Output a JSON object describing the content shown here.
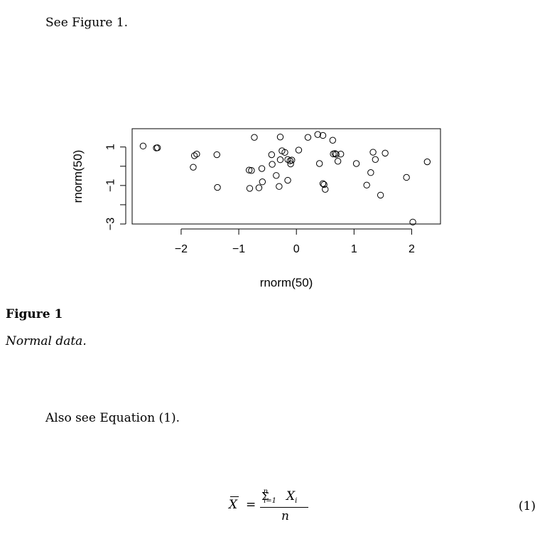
{
  "text": {
    "see_figure": "See Figure 1.",
    "figure_title": "Figure 1",
    "figure_caption": "Normal data.",
    "also_see": "Also see Equation (1).",
    "equation_number": "(1)"
  },
  "equation": {
    "lhs": "X",
    "equals": "=",
    "sum": "Σ",
    "sum_upper": "n",
    "sum_lower": "i=1",
    "term": "X",
    "term_sub": "i",
    "denominator": "n"
  },
  "chart_data": {
    "type": "scatter",
    "xlabel": "rnorm(50)",
    "ylabel": "rnorm(50)",
    "xlim": [
      -2.85,
      2.5
    ],
    "ylim": [
      -3.0,
      1.95
    ],
    "xticks": [
      -2,
      -1,
      0,
      1,
      2
    ],
    "xtick_labels": [
      "−2",
      "−1",
      "0",
      "1",
      "2"
    ],
    "yticks": [
      1,
      -1,
      -3
    ],
    "ytick_labels": [
      "1",
      "−1",
      "−3"
    ],
    "grid": false,
    "legend": "none",
    "points": [
      [
        -2.66,
        1.05
      ],
      [
        -2.43,
        0.95
      ],
      [
        -2.41,
        0.96
      ],
      [
        -1.77,
        0.55
      ],
      [
        -1.73,
        0.63
      ],
      [
        -1.79,
        -0.05
      ],
      [
        -1.38,
        0.6
      ],
      [
        -1.37,
        -1.1
      ],
      [
        -0.73,
        1.5
      ],
      [
        -0.82,
        -0.2
      ],
      [
        -0.78,
        -0.22
      ],
      [
        -0.81,
        -1.15
      ],
      [
        -0.65,
        -1.12
      ],
      [
        -0.59,
        -0.81
      ],
      [
        -0.6,
        -0.12
      ],
      [
        -0.43,
        0.6
      ],
      [
        -0.42,
        0.1
      ],
      [
        -0.35,
        -0.48
      ],
      [
        -0.28,
        1.52
      ],
      [
        -0.25,
        0.8
      ],
      [
        -0.2,
        0.72
      ],
      [
        -0.3,
        -1.05
      ],
      [
        -0.28,
        0.34
      ],
      [
        -0.15,
        0.35
      ],
      [
        -0.11,
        0.28
      ],
      [
        -0.1,
        0.12
      ],
      [
        -0.08,
        0.32
      ],
      [
        -0.15,
        -0.73
      ],
      [
        0.04,
        0.84
      ],
      [
        0.2,
        1.5
      ],
      [
        0.37,
        1.65
      ],
      [
        0.46,
        1.6
      ],
      [
        0.63,
        1.35
      ],
      [
        0.4,
        0.14
      ],
      [
        0.64,
        0.64
      ],
      [
        0.69,
        0.62
      ],
      [
        0.67,
        0.66
      ],
      [
        0.72,
        0.26
      ],
      [
        0.77,
        0.63
      ],
      [
        0.46,
        -0.9
      ],
      [
        0.48,
        -0.95
      ],
      [
        0.5,
        -1.2
      ],
      [
        1.04,
        0.14
      ],
      [
        1.22,
        -0.98
      ],
      [
        1.29,
        -0.33
      ],
      [
        1.33,
        0.73
      ],
      [
        1.37,
        0.35
      ],
      [
        1.54,
        0.68
      ],
      [
        1.46,
        -1.5
      ],
      [
        1.91,
        -0.58
      ],
      [
        2.27,
        0.23
      ],
      [
        2.02,
        -2.9
      ]
    ]
  }
}
